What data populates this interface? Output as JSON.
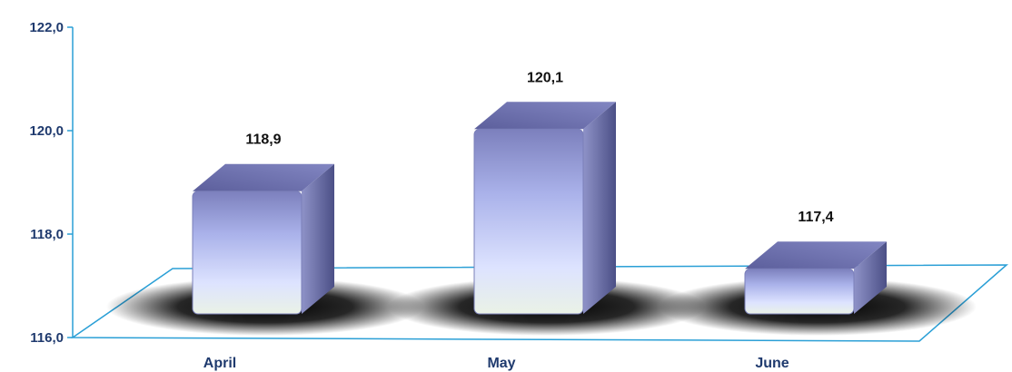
{
  "chart_data": {
    "type": "bar",
    "title": "",
    "xlabel": "",
    "ylabel": "",
    "categories": [
      "April",
      "May",
      "June"
    ],
    "values": [
      118.9,
      120.1,
      117.4
    ],
    "value_labels": [
      "118,9",
      "120,1",
      "117,4"
    ],
    "ylim": [
      116.0,
      122.0
    ],
    "yticks": [
      116.0,
      118.0,
      120.0,
      122.0
    ],
    "ytick_labels": [
      "116,0",
      "118,0",
      "120,0",
      "122,0"
    ],
    "grid": false,
    "legend": "none",
    "style": "3d-bevel",
    "colors": {
      "bar_top": "#6f73b3",
      "bar_light": "#d6dcff",
      "bar_side": "#5a5e95",
      "axis": "#2a9fd6",
      "shadow": "#000000"
    }
  }
}
